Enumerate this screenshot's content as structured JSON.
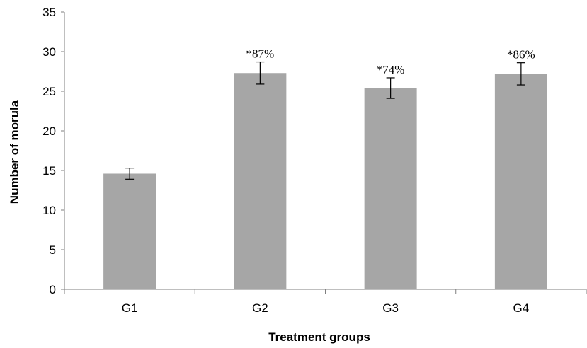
{
  "chart_data": {
    "type": "bar",
    "categories": [
      "G1",
      "G2",
      "G3",
      "G4"
    ],
    "values": [
      14.6,
      27.3,
      25.4,
      27.2
    ],
    "errors": [
      0.7,
      1.4,
      1.3,
      1.4
    ],
    "data_labels": [
      "",
      "*87%",
      "*74%",
      "*86%"
    ],
    "title": "",
    "xlabel": "Treatment groups",
    "ylabel": "Number of morula",
    "ylim": [
      0,
      35
    ],
    "yticks": [
      0,
      5,
      10,
      15,
      20,
      25,
      30,
      35
    ],
    "bar_color": "#a6a6a6",
    "grid": false,
    "legend": "none"
  }
}
